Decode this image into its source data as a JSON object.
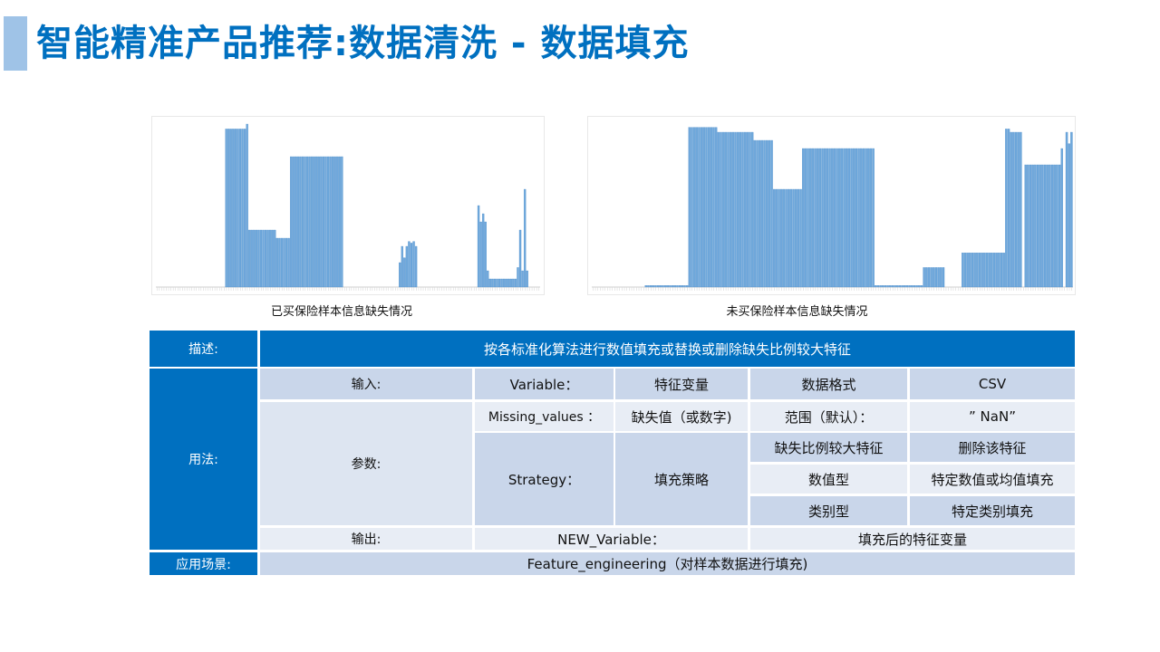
{
  "page": {
    "title": "智能精准产品推荐:数据清洗 - 数据填充"
  },
  "colors": {
    "accent": "#0070c0",
    "accent_light": "#9fc3e7",
    "bar": "#6fa8dc",
    "row_dark": "#c9d6ea",
    "row_light": "#dde5f1"
  },
  "charts": {
    "left": {
      "caption": "已买保险样本信息缺失情况"
    },
    "right": {
      "caption": "未买保险样本信息缺失情况"
    }
  },
  "chart_data": [
    {
      "type": "bar",
      "title": "",
      "caption": "已买保险样本信息缺失情况",
      "ylim": [
        0,
        1
      ],
      "segments": [
        {
          "count": 30,
          "value": 0.0
        },
        {
          "count": 9,
          "value": 0.97
        },
        {
          "count": 1,
          "value": 1.0
        },
        {
          "count": 12,
          "value": 0.35
        },
        {
          "count": 6,
          "value": 0.3
        },
        {
          "count": 23,
          "value": 0.8
        },
        {
          "count": 24,
          "value": 0.0
        },
        {
          "count": 1,
          "value": 0.15
        },
        {
          "count": 1,
          "value": 0.25
        },
        {
          "count": 1,
          "value": 0.18
        },
        {
          "count": 1,
          "value": 0.25
        },
        {
          "count": 1,
          "value": 0.28
        },
        {
          "count": 1,
          "value": 0.27
        },
        {
          "count": 1,
          "value": 0.28
        },
        {
          "count": 1,
          "value": 0.25
        },
        {
          "count": 26,
          "value": 0.0
        },
        {
          "count": 1,
          "value": 0.5
        },
        {
          "count": 1,
          "value": 0.4
        },
        {
          "count": 1,
          "value": 0.45
        },
        {
          "count": 1,
          "value": 0.4
        },
        {
          "count": 1,
          "value": 0.1
        },
        {
          "count": 12,
          "value": 0.05
        },
        {
          "count": 1,
          "value": 0.12
        },
        {
          "count": 1,
          "value": 0.35
        },
        {
          "count": 1,
          "value": 0.1
        },
        {
          "count": 1,
          "value": 0.6
        },
        {
          "count": 1,
          "value": 0.1
        },
        {
          "count": 5,
          "value": 0.0
        }
      ]
    },
    {
      "type": "bar",
      "title": "",
      "caption": "未买保险样本信息缺失情况",
      "ylim": [
        0,
        1
      ],
      "segments": [
        {
          "count": 22,
          "value": 0.0
        },
        {
          "count": 18,
          "value": 0.01
        },
        {
          "count": 12,
          "value": 0.98
        },
        {
          "count": 15,
          "value": 0.95
        },
        {
          "count": 8,
          "value": 0.9
        },
        {
          "count": 12,
          "value": 0.6
        },
        {
          "count": 30,
          "value": 0.85
        },
        {
          "count": 20,
          "value": 0.01
        },
        {
          "count": 9,
          "value": 0.12
        },
        {
          "count": 7,
          "value": 0.0
        },
        {
          "count": 18,
          "value": 0.21
        },
        {
          "count": 2,
          "value": 0.97
        },
        {
          "count": 5,
          "value": 0.95
        },
        {
          "count": 1,
          "value": 0.0
        },
        {
          "count": 15,
          "value": 0.75
        },
        {
          "count": 1,
          "value": 0.85
        },
        {
          "count": 1,
          "value": 0.0
        },
        {
          "count": 1,
          "value": 0.95
        },
        {
          "count": 1,
          "value": 0.88
        },
        {
          "count": 1,
          "value": 0.95
        }
      ]
    }
  ],
  "spec_table": {
    "description_label": "描述:",
    "description_text": "按各标准化算法进行数值填充或替换或删除缺失比例较大特征",
    "usage_label": "用法:",
    "input_label": "输入:",
    "input_name": "Variable：",
    "input_desc": "特征变量",
    "format_label": "数据格式",
    "format_value": "CSV",
    "params_label": "参数:",
    "param1_name": "Missing_values ：",
    "param1_desc": "缺失值（或数字)",
    "param1_range_label": "范围（默认）：",
    "param1_range_value": "” NaN”",
    "param2_name": "Strategy：",
    "param2_desc": "填充策略",
    "strategy_rows": [
      {
        "condition": "缺失比例较大特征",
        "action": "删除该特征"
      },
      {
        "condition": "数值型",
        "action": "特定数值或均值填充"
      },
      {
        "condition": "类别型",
        "action": "特定类别填充"
      }
    ],
    "output_label": "输出:",
    "output_name": "NEW_Variable：",
    "output_desc": "填充后的特征变量",
    "scenario_label": "应用场景:",
    "scenario_text": "Feature_engineering（对样本数据进行填充)"
  }
}
